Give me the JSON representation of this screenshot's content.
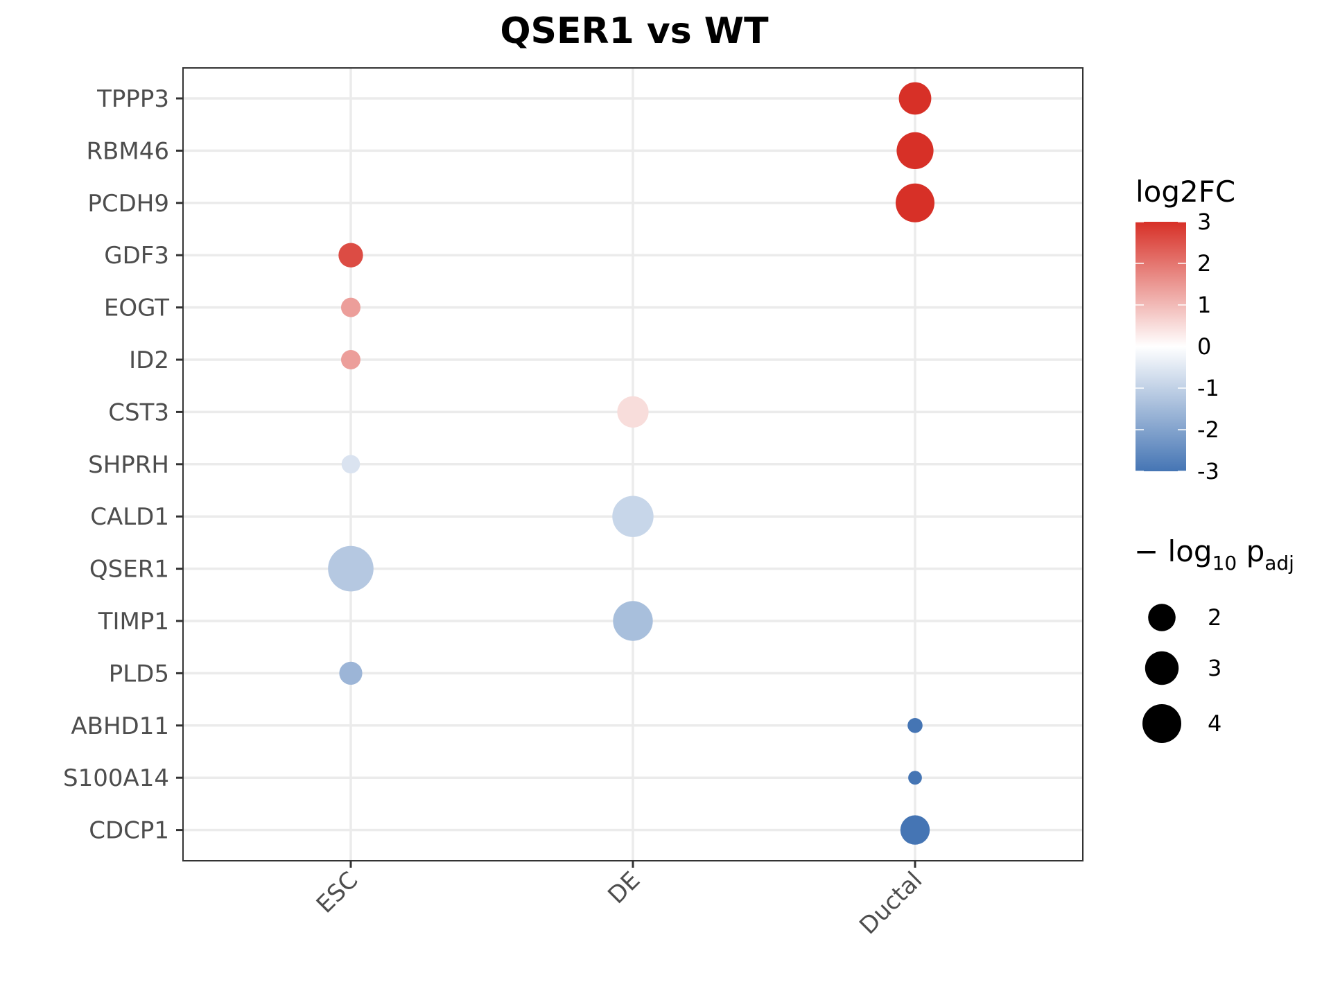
{
  "chart_data": {
    "type": "scatter",
    "title": "QSER1 vs WT",
    "xlabel": "",
    "ylabel": "",
    "categories_x": [
      "ESC",
      "DE",
      "Ductal"
    ],
    "categories_y": [
      "TPPP3",
      "RBM46",
      "PCDH9",
      "GDF3",
      "EOGT",
      "ID2",
      "CST3",
      "SHPRH",
      "CALD1",
      "QSER1",
      "TIMP1",
      "PLD5",
      "ABHD11",
      "S100A14",
      "CDCP1"
    ],
    "points": [
      {
        "gene": "TPPP3",
        "group": "Ductal",
        "log2FC": 3.0,
        "neglog10padj": 2.8
      },
      {
        "gene": "RBM46",
        "group": "Ductal",
        "log2FC": 3.0,
        "neglog10padj": 3.6
      },
      {
        "gene": "PCDH9",
        "group": "Ductal",
        "log2FC": 3.0,
        "neglog10padj": 4.0
      },
      {
        "gene": "GDF3",
        "group": "ESC",
        "log2FC": 2.6,
        "neglog10padj": 1.6
      },
      {
        "gene": "EOGT",
        "group": "ESC",
        "log2FC": 1.4,
        "neglog10padj": 1.0
      },
      {
        "gene": "ID2",
        "group": "ESC",
        "log2FC": 1.4,
        "neglog10padj": 1.0
      },
      {
        "gene": "CST3",
        "group": "DE",
        "log2FC": 0.5,
        "neglog10padj": 2.6
      },
      {
        "gene": "SHPRH",
        "group": "ESC",
        "log2FC": -0.6,
        "neglog10padj": 0.9
      },
      {
        "gene": "CALD1",
        "group": "DE",
        "log2FC": -0.9,
        "neglog10padj": 4.5
      },
      {
        "gene": "QSER1",
        "group": "ESC",
        "log2FC": -1.2,
        "neglog10padj": 5.5
      },
      {
        "gene": "TIMP1",
        "group": "DE",
        "log2FC": -1.4,
        "neglog10padj": 4.2
      },
      {
        "gene": "PLD5",
        "group": "ESC",
        "log2FC": -1.6,
        "neglog10padj": 1.4
      },
      {
        "gene": "ABHD11",
        "group": "Ductal",
        "log2FC": -3.0,
        "neglog10padj": 0.6
      },
      {
        "gene": "S100A14",
        "group": "Ductal",
        "log2FC": -3.0,
        "neglog10padj": 0.5
      },
      {
        "gene": "CDCP1",
        "group": "Ductal",
        "log2FC": -3.0,
        "neglog10padj": 2.3
      }
    ],
    "color_scale": {
      "title": "log2FC",
      "min": -3,
      "max": 3,
      "low_color": "#4575b4",
      "mid_color": "#ffffff",
      "high_color": "#d73027",
      "ticks": [
        "3",
        "2",
        "1",
        "0",
        "-1",
        "-2",
        "-3"
      ]
    },
    "size_legend": {
      "title_main": "− log",
      "title_sub1": "10",
      "title_mid": " p",
      "title_sub2": "adj",
      "entries": [
        {
          "label": "2",
          "value": 2
        },
        {
          "label": "3",
          "value": 3
        },
        {
          "label": "4",
          "value": 4
        }
      ]
    },
    "grid": true,
    "legend_position": "right"
  }
}
